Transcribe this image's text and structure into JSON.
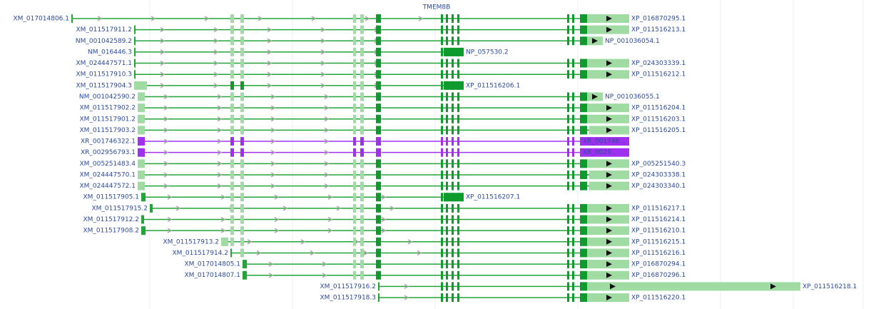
{
  "gene": "TMEM8B",
  "transcripts": [
    {
      "name": "XM_017014806.1",
      "product": "XP_016870295.1"
    },
    {
      "name": "XM_011517911.2",
      "product": "XP_011516213.1"
    },
    {
      "name": "NM_001042589.2",
      "product": "NP_001036054.1"
    },
    {
      "name": "NM_016446.3",
      "product": "NP_057530.2"
    },
    {
      "name": "XM_024447571.1",
      "product": "XP_024303339.1"
    },
    {
      "name": "XM_011517910.3",
      "product": "XP_011516212.1"
    },
    {
      "name": "XM_011517904.3",
      "product": "XP_011516206.1"
    },
    {
      "name": "NM_001042590.2",
      "product": "NP_001036055.1"
    },
    {
      "name": "XM_011517902.2",
      "product": "XP_011516204.1"
    },
    {
      "name": "XM_011517901.2",
      "product": "XP_011516203.1"
    },
    {
      "name": "XM_011517903.2",
      "product": "XP_011516205.1"
    },
    {
      "name": "XR_001746322.1",
      "product": "XR_001746..."
    },
    {
      "name": "XR_002956793.1",
      "product": "XR_0029..."
    },
    {
      "name": "XM_005251483.4",
      "product": "XP_005251540.3"
    },
    {
      "name": "XM_024447570.1",
      "product": "XP_024303338.1"
    },
    {
      "name": "XM_024447572.1",
      "product": "XP_024303340.1"
    },
    {
      "name": "XM_011517905.1",
      "product": "XP_011516207.1"
    },
    {
      "name": "XM_011517915.2",
      "product": "XP_011516217.1"
    },
    {
      "name": "XM_011517912.2",
      "product": "XP_011516214.1"
    },
    {
      "name": "XM_011517908.2",
      "product": "XP_011516210.1"
    },
    {
      "name": "XM_011517913.2",
      "product": "XP_011516215.1"
    },
    {
      "name": "XM_011517914.2",
      "product": "XP_011516216.1"
    },
    {
      "name": "XM_017014805.1",
      "product": "XP_016870294.1"
    },
    {
      "name": "XM_017014807.1",
      "product": "XP_016870296.1"
    },
    {
      "name": "XM_011517916.2",
      "product": "XP_011516218.1"
    },
    {
      "name": "XM_011517918.3",
      "product": "XP_011516220.1"
    }
  ]
}
